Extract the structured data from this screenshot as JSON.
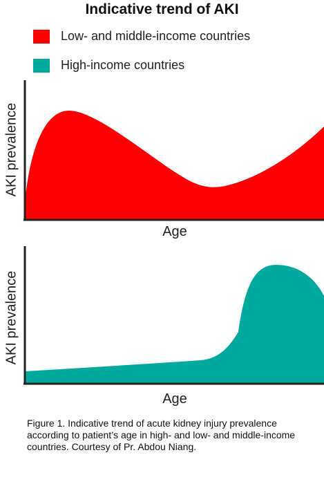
{
  "title": "Indicative trend of AKI",
  "legend": [
    {
      "label": "Low- and middle-income countries",
      "color": "#ff0000"
    },
    {
      "label": "High-income countries",
      "color": "#00a99d"
    }
  ],
  "caption": "Figure 1. Indicative trend of acute kidney injury prevalence according to patient’s age in high- and low- and middle-income countries. Courtesy of Pr. Abdou Niang.",
  "chart_data": [
    {
      "type": "area",
      "series": [
        {
          "name": "Low- and middle-income countries",
          "color": "#ff0000"
        }
      ],
      "xlabel": "Age",
      "ylabel": "AKI prevalence"
    },
    {
      "type": "area",
      "series": [
        {
          "name": "High-income countries",
          "color": "#00a99d"
        }
      ],
      "xlabel": "Age",
      "ylabel": "AKI prevalence"
    }
  ]
}
